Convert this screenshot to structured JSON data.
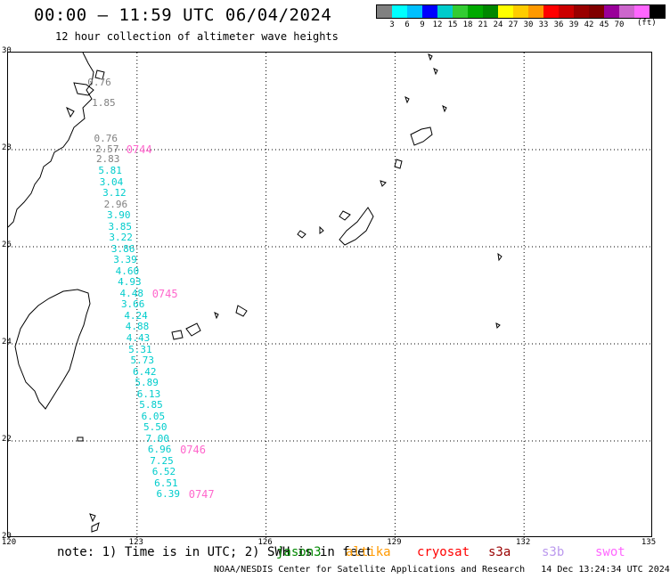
{
  "header": {
    "title": "00:00 – 11:59 UTC 06/04/2024",
    "subtitle": "12 hour collection of altimeter wave heights"
  },
  "legend": {
    "unit": "(ft)",
    "colors": [
      "#808080",
      "#00ffff",
      "#00c0ff",
      "#0000ff",
      "#00cccc",
      "#33cc33",
      "#00aa00",
      "#008800",
      "#ffff00",
      "#ffcc00",
      "#ff9900",
      "#ff0000",
      "#cc0000",
      "#990000",
      "#800000",
      "#990099",
      "#cc66cc",
      "#ff66ff",
      "#000000"
    ],
    "ticks": [
      "3",
      "6",
      "9",
      "12",
      "15",
      "18",
      "21",
      "24",
      "27",
      "30",
      "33",
      "36",
      "39",
      "42",
      "45",
      "70"
    ]
  },
  "axes": {
    "lat_labels": [
      "30",
      "28",
      "26",
      "24",
      "22",
      "20"
    ],
    "lon_labels": [
      "120",
      "123",
      "126",
      "129",
      "132",
      "135"
    ]
  },
  "observations": [
    {
      "value": "0.76",
      "color": "#808080",
      "lon": 121.85,
      "lat": 29.37
    },
    {
      "value": "1.85",
      "color": "#808080",
      "lon": 121.95,
      "lat": 28.95
    },
    {
      "value": "0.76",
      "color": "#808080",
      "lon": 122.0,
      "lat": 28.22
    },
    {
      "value": "2.57",
      "color": "#808080",
      "lon": 122.03,
      "lat": 28.0
    },
    {
      "value": "2.83",
      "color": "#808080",
      "lon": 122.05,
      "lat": 27.79
    },
    {
      "value": "5.81",
      "color": "#00cccc",
      "lon": 122.1,
      "lat": 27.56
    },
    {
      "value": "3.04",
      "color": "#00cccc",
      "lon": 122.13,
      "lat": 27.33
    },
    {
      "value": "3.12",
      "color": "#00cccc",
      "lon": 122.2,
      "lat": 27.1
    },
    {
      "value": "2.96",
      "color": "#808080",
      "lon": 122.23,
      "lat": 26.87
    },
    {
      "value": "3.90",
      "color": "#00cccc",
      "lon": 122.3,
      "lat": 26.64
    },
    {
      "value": "3.85",
      "color": "#00cccc",
      "lon": 122.33,
      "lat": 26.41
    },
    {
      "value": "3.22",
      "color": "#00cccc",
      "lon": 122.35,
      "lat": 26.18
    },
    {
      "value": "3.86",
      "color": "#00cccc",
      "lon": 122.4,
      "lat": 25.95
    },
    {
      "value": "3.39",
      "color": "#00cccc",
      "lon": 122.45,
      "lat": 25.72
    },
    {
      "value": "4.60",
      "color": "#00cccc",
      "lon": 122.5,
      "lat": 25.49
    },
    {
      "value": "4.93",
      "color": "#00cccc",
      "lon": 122.55,
      "lat": 25.26
    },
    {
      "value": "4.48",
      "color": "#00cccc",
      "lon": 122.6,
      "lat": 25.03
    },
    {
      "value": "3.66",
      "color": "#00cccc",
      "lon": 122.63,
      "lat": 24.8
    },
    {
      "value": "4.24",
      "color": "#00cccc",
      "lon": 122.7,
      "lat": 24.57
    },
    {
      "value": "4.88",
      "color": "#00cccc",
      "lon": 122.73,
      "lat": 24.34
    },
    {
      "value": "4.43",
      "color": "#00cccc",
      "lon": 122.75,
      "lat": 24.11
    },
    {
      "value": "5.31",
      "color": "#00cccc",
      "lon": 122.8,
      "lat": 23.88
    },
    {
      "value": "5.73",
      "color": "#00cccc",
      "lon": 122.85,
      "lat": 23.65
    },
    {
      "value": "6.42",
      "color": "#00cccc",
      "lon": 122.9,
      "lat": 23.42
    },
    {
      "value": "5.89",
      "color": "#00cccc",
      "lon": 122.95,
      "lat": 23.19
    },
    {
      "value": "6.13",
      "color": "#00cccc",
      "lon": 123.0,
      "lat": 22.96
    },
    {
      "value": "5.85",
      "color": "#00cccc",
      "lon": 123.05,
      "lat": 22.73
    },
    {
      "value": "6.05",
      "color": "#00cccc",
      "lon": 123.1,
      "lat": 22.5
    },
    {
      "value": "5.50",
      "color": "#00cccc",
      "lon": 123.15,
      "lat": 22.27
    },
    {
      "value": "7.00",
      "color": "#00cccc",
      "lon": 123.2,
      "lat": 22.04
    },
    {
      "value": "6.96",
      "color": "#00cccc",
      "lon": 123.25,
      "lat": 21.81
    },
    {
      "value": "7.25",
      "color": "#00cccc",
      "lon": 123.3,
      "lat": 21.58
    },
    {
      "value": "6.52",
      "color": "#00cccc",
      "lon": 123.35,
      "lat": 21.35
    },
    {
      "value": "6.51",
      "color": "#00cccc",
      "lon": 123.4,
      "lat": 21.12
    },
    {
      "value": "6.39",
      "color": "#00cccc",
      "lon": 123.45,
      "lat": 20.89
    }
  ],
  "pass_labels": [
    {
      "label": "0744",
      "lon": 122.75,
      "lat": 28.0
    },
    {
      "label": "0745",
      "lon": 123.35,
      "lat": 25.03
    },
    {
      "label": "0746",
      "lon": 124.0,
      "lat": 21.81
    },
    {
      "label": "0747",
      "lon": 124.2,
      "lat": 20.89
    }
  ],
  "footer": {
    "note": "note: 1) Time is in UTC; 2) SWH is in feet",
    "satellites": [
      {
        "name": "jason3",
        "color": "#008800"
      },
      {
        "name": "altika",
        "color": "#ff9900"
      },
      {
        "name": "cryosat",
        "color": "#ff0000"
      },
      {
        "name": "s3a",
        "color": "#990000"
      },
      {
        "name": "s3b",
        "color": "#bb99ee"
      },
      {
        "name": "swot",
        "color": "#ff66ff"
      }
    ],
    "credit": "NOAA/NESDIS Center for Satellite Applications and Research",
    "timestamp": "14 Dec 13:24:34 UTC 2024"
  }
}
